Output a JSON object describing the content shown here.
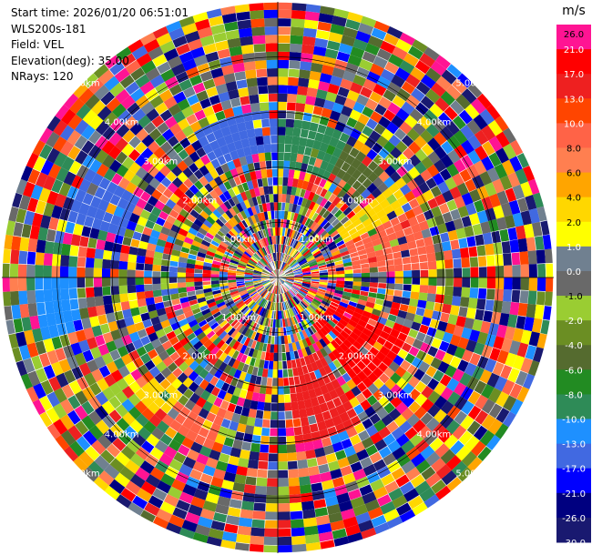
{
  "header": {
    "start_time": "Start time: 2026/01/20 06:51:01",
    "instrument": "WLS200s-181",
    "field": "Field: VEL",
    "elevation": "Elevation(deg): 35.00",
    "nrays": "NRays: 120"
  },
  "chart_data": {
    "type": "heatmap",
    "projection": "polar-ppi",
    "field": "VEL",
    "units": "m/s",
    "elevation_deg": 35.0,
    "n_rays": 120,
    "max_range_km": 5.0,
    "range_rings_km": [
      1,
      2,
      3,
      4,
      5
    ],
    "ring_labels": [
      "1.00km",
      "2.00km",
      "3.00km",
      "4.00km",
      "5.00km"
    ],
    "colorbar": {
      "unit": "m/s",
      "ticks": [
        "26.0",
        "21.0",
        "17.0",
        "13.0",
        "10.0",
        "8.0",
        "6.0",
        "4.0",
        "2.0",
        "1.0",
        "0.0",
        "-1.0",
        "-2.0",
        "-4.0",
        "-6.0",
        "-8.0",
        "-10.0",
        "-13.0",
        "-17.0",
        "-21.0",
        "-26.0",
        "-30.0"
      ],
      "colors": [
        "#ff1493",
        "#ff0000",
        "#ee2020",
        "#ff4500",
        "#ff6347",
        "#ff7f50",
        "#ffa500",
        "#ffd700",
        "#ffff00",
        "#708090",
        "#696969",
        "#9acd32",
        "#6b8e23",
        "#556b2f",
        "#228b22",
        "#2e8b57",
        "#1e90ff",
        "#4169e1",
        "#0000ff",
        "#000080",
        "#191970",
        "#191970"
      ]
    },
    "coherent_patches": [
      {
        "az_from": 330,
        "az_to": 360,
        "r_from": 2.3,
        "r_to": 3.0,
        "value": -17.0
      },
      {
        "az_from": 0,
        "az_to": 28,
        "r_from": 2.0,
        "r_to": 2.9,
        "value": -10.0
      },
      {
        "az_from": 28,
        "az_to": 45,
        "r_from": 2.1,
        "r_to": 2.8,
        "value": -6.0
      },
      {
        "az_from": 50,
        "az_to": 62,
        "r_from": 1.3,
        "r_to": 2.8,
        "value": 2.0
      },
      {
        "az_from": 60,
        "az_to": 88,
        "r_from": 1.4,
        "r_to": 2.9,
        "value": 8.0
      },
      {
        "az_from": 110,
        "az_to": 145,
        "r_from": 1.0,
        "r_to": 2.6,
        "value": 17.0
      },
      {
        "az_from": 150,
        "az_to": 175,
        "r_from": 1.5,
        "r_to": 3.0,
        "value": 13.0
      },
      {
        "az_from": 218,
        "az_to": 230,
        "r_from": 2.8,
        "r_to": 3.4,
        "value": 2.0
      },
      {
        "az_from": 228,
        "az_to": 236,
        "r_from": 3.3,
        "r_to": 3.8,
        "value": -2.0
      },
      {
        "az_from": 226,
        "az_to": 235,
        "r_from": 3.0,
        "r_to": 3.4,
        "value": 1.0
      },
      {
        "az_from": 200,
        "az_to": 218,
        "r_from": 2.7,
        "r_to": 3.3,
        "value": 8.0
      },
      {
        "az_from": 285,
        "az_to": 300,
        "r_from": 2.9,
        "r_to": 3.9,
        "value": -17.0
      },
      {
        "az_from": 255,
        "az_to": 270,
        "r_from": 3.6,
        "r_to": 4.4,
        "value": -13.0
      }
    ]
  }
}
